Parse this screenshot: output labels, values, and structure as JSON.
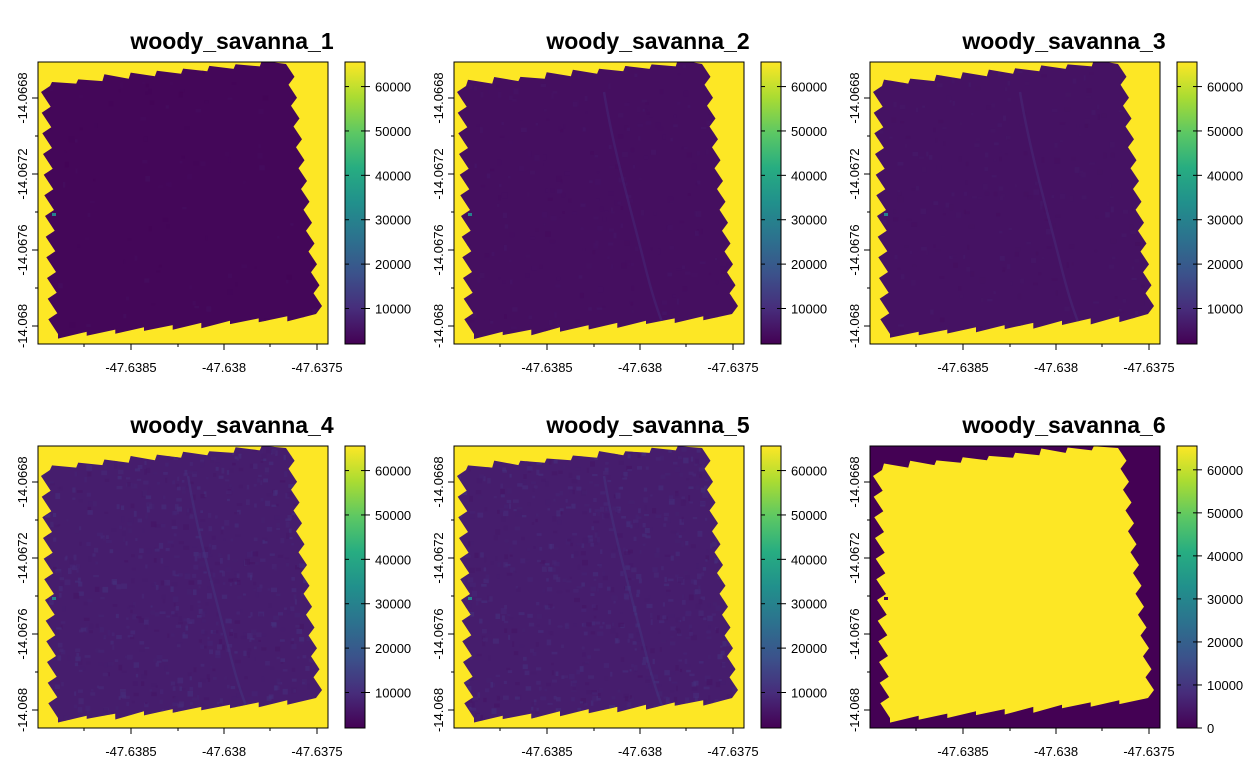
{
  "colors": {
    "scale": [
      "#440154",
      "#472D7B",
      "#3B528B",
      "#2C728E",
      "#21908C",
      "#27AD81",
      "#5DC863",
      "#AADC32",
      "#FDE725"
    ],
    "axis": "#000000"
  },
  "chart_data": [
    {
      "type": "heatmap",
      "title": "woody_savanna_1",
      "x_ticks": [
        "-47.6385",
        "-47.638",
        "-47.6375"
      ],
      "y_ticks": [
        "-14.0668",
        "-14.0672",
        "-14.0676",
        "-14.068"
      ],
      "legend_ticks": [
        "10000",
        "20000",
        "30000",
        "40000",
        "50000",
        "60000"
      ],
      "legend_range": [
        2000,
        65535
      ],
      "background_value": 65535,
      "image_value": 3000,
      "texture": "smooth"
    },
    {
      "type": "heatmap",
      "title": "woody_savanna_2",
      "x_ticks": [
        "-47.6385",
        "-47.638",
        "-47.6375"
      ],
      "y_ticks": [
        "-14.0668",
        "-14.0672",
        "-14.0676",
        "-14.068"
      ],
      "legend_ticks": [
        "10000",
        "20000",
        "30000",
        "40000",
        "50000",
        "60000"
      ],
      "legend_range": [
        2000,
        65535
      ],
      "background_value": 65535,
      "image_value": 4500,
      "texture": "light"
    },
    {
      "type": "heatmap",
      "title": "woody_savanna_3",
      "x_ticks": [
        "-47.6385",
        "-47.638",
        "-47.6375"
      ],
      "y_ticks": [
        "-14.0668",
        "-14.0672",
        "-14.0676",
        "-14.068"
      ],
      "legend_ticks": [
        "10000",
        "20000",
        "30000",
        "40000",
        "50000",
        "60000"
      ],
      "legend_range": [
        2000,
        65535
      ],
      "background_value": 65535,
      "image_value": 5000,
      "texture": "light"
    },
    {
      "type": "heatmap",
      "title": "woody_savanna_4",
      "x_ticks": [
        "-47.6385",
        "-47.638",
        "-47.6375"
      ],
      "y_ticks": [
        "-14.0668",
        "-14.0672",
        "-14.0676",
        "-14.068"
      ],
      "legend_ticks": [
        "10000",
        "20000",
        "30000",
        "40000",
        "50000",
        "60000"
      ],
      "legend_range": [
        2000,
        65535
      ],
      "background_value": 65535,
      "image_value": 7000,
      "texture": "rough"
    },
    {
      "type": "heatmap",
      "title": "woody_savanna_5",
      "x_ticks": [
        "-47.6385",
        "-47.638",
        "-47.6375"
      ],
      "y_ticks": [
        "-14.0668",
        "-14.0672",
        "-14.0676",
        "-14.068"
      ],
      "legend_ticks": [
        "10000",
        "20000",
        "30000",
        "40000",
        "50000",
        "60000"
      ],
      "legend_range": [
        2000,
        65535
      ],
      "background_value": 65535,
      "image_value": 7000,
      "texture": "rough"
    },
    {
      "type": "heatmap",
      "title": "woody_savanna_6",
      "x_ticks": [
        "-47.6385",
        "-47.638",
        "-47.6375"
      ],
      "y_ticks": [
        "-14.0668",
        "-14.0672",
        "-14.0676",
        "-14.068"
      ],
      "legend_ticks": [
        "0",
        "10000",
        "20000",
        "30000",
        "40000",
        "50000",
        "60000"
      ],
      "legend_range": [
        0,
        65535
      ],
      "background_value": 0,
      "image_value": 65535,
      "texture": "none"
    }
  ]
}
